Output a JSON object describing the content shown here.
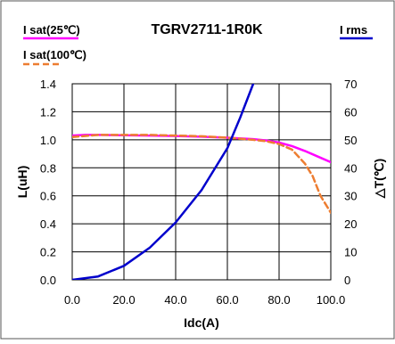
{
  "chart_data": {
    "type": "line",
    "title": "TGRV2711-1R0K",
    "xlabel": "Idc(A)",
    "ylabel": "L(uH)",
    "y2label": "△T(℃)",
    "xlim": [
      0,
      100
    ],
    "ylim": [
      0,
      1.4
    ],
    "y2lim": [
      0,
      70
    ],
    "xticks": [
      "0.0",
      "20.0",
      "40.0",
      "60.0",
      "80.0",
      "100.0"
    ],
    "yticks": [
      "0.0",
      "0.2",
      "0.4",
      "0.6",
      "0.8",
      "1.0",
      "1.2",
      "1.4"
    ],
    "y2ticks": [
      "0",
      "10",
      "20",
      "30",
      "40",
      "50",
      "60",
      "70"
    ],
    "grid": true,
    "legend": {
      "isat25": "I sat(25℃)",
      "isat100": "I sat(100℃)",
      "irms": "I rms"
    },
    "series": [
      {
        "name": "I sat(25℃)",
        "axis": "left",
        "color": "#ff00ff",
        "dash": "solid",
        "x": [
          0,
          5,
          10,
          20,
          30,
          40,
          50,
          60,
          70,
          75,
          80,
          85,
          90,
          95,
          100
        ],
        "y": [
          1.03,
          1.035,
          1.035,
          1.033,
          1.03,
          1.027,
          1.022,
          1.015,
          1.005,
          0.995,
          0.98,
          0.955,
          0.92,
          0.88,
          0.84
        ]
      },
      {
        "name": "I sat(100℃)",
        "axis": "left",
        "color": "#ed7d31",
        "dash": "dashed",
        "x": [
          0,
          10,
          20,
          30,
          40,
          50,
          60,
          70,
          75,
          80,
          85,
          90,
          93,
          96,
          100
        ],
        "y": [
          1.02,
          1.035,
          1.035,
          1.035,
          1.03,
          1.025,
          1.015,
          1.0,
          0.99,
          0.97,
          0.93,
          0.83,
          0.74,
          0.6,
          0.48
        ]
      },
      {
        "name": "I rms",
        "axis": "right",
        "color": "#0000cc",
        "dash": "solid",
        "x": [
          0,
          10,
          20,
          30,
          40,
          50,
          60,
          65,
          70
        ],
        "y": [
          0,
          1.2,
          5,
          11.5,
          20.5,
          32,
          47,
          58,
          70
        ]
      }
    ]
  }
}
